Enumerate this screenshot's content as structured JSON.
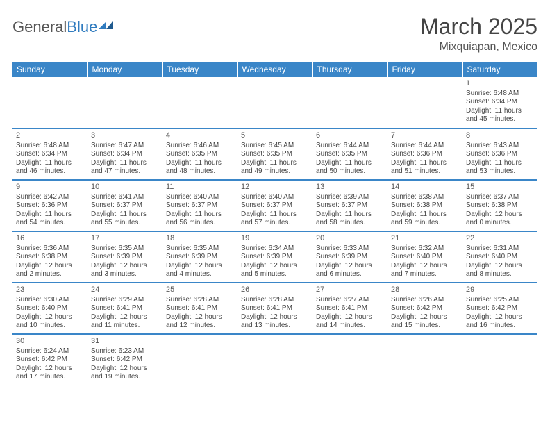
{
  "logo": {
    "general": "General",
    "blue": "Blue"
  },
  "title": "March 2025",
  "location": "Mixquiapan, Mexico",
  "header_color": "#3a86c8",
  "divider_color": "#3a86c8",
  "weekdays": [
    "Sunday",
    "Monday",
    "Tuesday",
    "Wednesday",
    "Thursday",
    "Friday",
    "Saturday"
  ],
  "weeks": [
    [
      null,
      null,
      null,
      null,
      null,
      null,
      {
        "n": "1",
        "sr": "Sunrise: 6:48 AM",
        "ss": "Sunset: 6:34 PM",
        "dl": "Daylight: 11 hours and 45 minutes."
      }
    ],
    [
      {
        "n": "2",
        "sr": "Sunrise: 6:48 AM",
        "ss": "Sunset: 6:34 PM",
        "dl": "Daylight: 11 hours and 46 minutes."
      },
      {
        "n": "3",
        "sr": "Sunrise: 6:47 AM",
        "ss": "Sunset: 6:34 PM",
        "dl": "Daylight: 11 hours and 47 minutes."
      },
      {
        "n": "4",
        "sr": "Sunrise: 6:46 AM",
        "ss": "Sunset: 6:35 PM",
        "dl": "Daylight: 11 hours and 48 minutes."
      },
      {
        "n": "5",
        "sr": "Sunrise: 6:45 AM",
        "ss": "Sunset: 6:35 PM",
        "dl": "Daylight: 11 hours and 49 minutes."
      },
      {
        "n": "6",
        "sr": "Sunrise: 6:44 AM",
        "ss": "Sunset: 6:35 PM",
        "dl": "Daylight: 11 hours and 50 minutes."
      },
      {
        "n": "7",
        "sr": "Sunrise: 6:44 AM",
        "ss": "Sunset: 6:36 PM",
        "dl": "Daylight: 11 hours and 51 minutes."
      },
      {
        "n": "8",
        "sr": "Sunrise: 6:43 AM",
        "ss": "Sunset: 6:36 PM",
        "dl": "Daylight: 11 hours and 53 minutes."
      }
    ],
    [
      {
        "n": "9",
        "sr": "Sunrise: 6:42 AM",
        "ss": "Sunset: 6:36 PM",
        "dl": "Daylight: 11 hours and 54 minutes."
      },
      {
        "n": "10",
        "sr": "Sunrise: 6:41 AM",
        "ss": "Sunset: 6:37 PM",
        "dl": "Daylight: 11 hours and 55 minutes."
      },
      {
        "n": "11",
        "sr": "Sunrise: 6:40 AM",
        "ss": "Sunset: 6:37 PM",
        "dl": "Daylight: 11 hours and 56 minutes."
      },
      {
        "n": "12",
        "sr": "Sunrise: 6:40 AM",
        "ss": "Sunset: 6:37 PM",
        "dl": "Daylight: 11 hours and 57 minutes."
      },
      {
        "n": "13",
        "sr": "Sunrise: 6:39 AM",
        "ss": "Sunset: 6:37 PM",
        "dl": "Daylight: 11 hours and 58 minutes."
      },
      {
        "n": "14",
        "sr": "Sunrise: 6:38 AM",
        "ss": "Sunset: 6:38 PM",
        "dl": "Daylight: 11 hours and 59 minutes."
      },
      {
        "n": "15",
        "sr": "Sunrise: 6:37 AM",
        "ss": "Sunset: 6:38 PM",
        "dl": "Daylight: 12 hours and 0 minutes."
      }
    ],
    [
      {
        "n": "16",
        "sr": "Sunrise: 6:36 AM",
        "ss": "Sunset: 6:38 PM",
        "dl": "Daylight: 12 hours and 2 minutes."
      },
      {
        "n": "17",
        "sr": "Sunrise: 6:35 AM",
        "ss": "Sunset: 6:39 PM",
        "dl": "Daylight: 12 hours and 3 minutes."
      },
      {
        "n": "18",
        "sr": "Sunrise: 6:35 AM",
        "ss": "Sunset: 6:39 PM",
        "dl": "Daylight: 12 hours and 4 minutes."
      },
      {
        "n": "19",
        "sr": "Sunrise: 6:34 AM",
        "ss": "Sunset: 6:39 PM",
        "dl": "Daylight: 12 hours and 5 minutes."
      },
      {
        "n": "20",
        "sr": "Sunrise: 6:33 AM",
        "ss": "Sunset: 6:39 PM",
        "dl": "Daylight: 12 hours and 6 minutes."
      },
      {
        "n": "21",
        "sr": "Sunrise: 6:32 AM",
        "ss": "Sunset: 6:40 PM",
        "dl": "Daylight: 12 hours and 7 minutes."
      },
      {
        "n": "22",
        "sr": "Sunrise: 6:31 AM",
        "ss": "Sunset: 6:40 PM",
        "dl": "Daylight: 12 hours and 8 minutes."
      }
    ],
    [
      {
        "n": "23",
        "sr": "Sunrise: 6:30 AM",
        "ss": "Sunset: 6:40 PM",
        "dl": "Daylight: 12 hours and 10 minutes."
      },
      {
        "n": "24",
        "sr": "Sunrise: 6:29 AM",
        "ss": "Sunset: 6:41 PM",
        "dl": "Daylight: 12 hours and 11 minutes."
      },
      {
        "n": "25",
        "sr": "Sunrise: 6:28 AM",
        "ss": "Sunset: 6:41 PM",
        "dl": "Daylight: 12 hours and 12 minutes."
      },
      {
        "n": "26",
        "sr": "Sunrise: 6:28 AM",
        "ss": "Sunset: 6:41 PM",
        "dl": "Daylight: 12 hours and 13 minutes."
      },
      {
        "n": "27",
        "sr": "Sunrise: 6:27 AM",
        "ss": "Sunset: 6:41 PM",
        "dl": "Daylight: 12 hours and 14 minutes."
      },
      {
        "n": "28",
        "sr": "Sunrise: 6:26 AM",
        "ss": "Sunset: 6:42 PM",
        "dl": "Daylight: 12 hours and 15 minutes."
      },
      {
        "n": "29",
        "sr": "Sunrise: 6:25 AM",
        "ss": "Sunset: 6:42 PM",
        "dl": "Daylight: 12 hours and 16 minutes."
      }
    ],
    [
      {
        "n": "30",
        "sr": "Sunrise: 6:24 AM",
        "ss": "Sunset: 6:42 PM",
        "dl": "Daylight: 12 hours and 17 minutes."
      },
      {
        "n": "31",
        "sr": "Sunrise: 6:23 AM",
        "ss": "Sunset: 6:42 PM",
        "dl": "Daylight: 12 hours and 19 minutes."
      },
      null,
      null,
      null,
      null,
      null
    ]
  ]
}
